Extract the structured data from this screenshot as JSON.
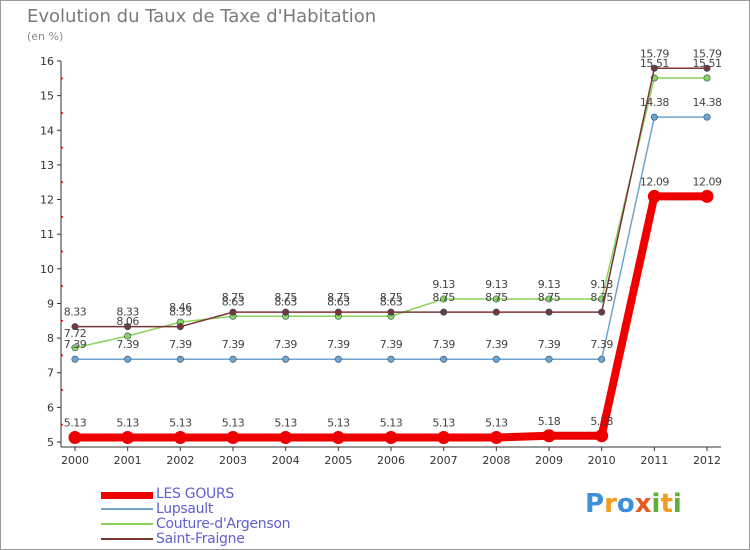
{
  "chart_data": {
    "type": "line",
    "title": "Evolution du Taux de Taxe d'Habitation",
    "subtitle": "(en %)",
    "categories": [
      "2000",
      "2001",
      "2002",
      "2003",
      "2004",
      "2005",
      "2006",
      "2007",
      "2008",
      "2009",
      "2010",
      "2011",
      "2012"
    ],
    "ylim": [
      5,
      16
    ],
    "yticks": [
      5,
      6,
      7,
      8,
      9,
      10,
      11,
      12,
      13,
      14,
      15,
      16
    ],
    "grid": false,
    "legend_position": "bottom-left",
    "series": [
      {
        "name": "LES GOURS",
        "color": "#ee0000",
        "values": [
          5.13,
          5.13,
          5.13,
          5.13,
          5.13,
          5.13,
          5.13,
          5.13,
          5.13,
          5.18,
          5.18,
          12.09,
          12.09
        ],
        "labels": [
          "5.13",
          "5.13",
          "5.13",
          "5.13",
          "5.13",
          "5.13",
          "5.13",
          "5.13",
          "5.13",
          "5.18",
          "5.18",
          "12.09",
          "12.09"
        ]
      },
      {
        "name": "Lupsault",
        "color": "#6fa4cf",
        "values": [
          7.39,
          7.39,
          7.39,
          7.39,
          7.39,
          7.39,
          7.39,
          7.39,
          7.39,
          7.39,
          7.39,
          14.38,
          14.38
        ],
        "labels": [
          "7.39",
          "7.39",
          "7.39",
          "7.39",
          "7.39",
          "7.39",
          "7.39",
          "7.39",
          "7.39",
          "7.39",
          "7.39",
          "14.38",
          "14.38"
        ]
      },
      {
        "name": "Couture-d'Argenson",
        "color": "#8ad45a",
        "values": [
          7.72,
          8.06,
          8.46,
          8.63,
          8.63,
          8.63,
          8.63,
          9.13,
          9.13,
          9.13,
          9.13,
          15.51,
          15.51
        ],
        "labels": [
          "7.72",
          "8.06",
          "8.46",
          "8.63",
          "8.63",
          "8.63",
          "8.63",
          "9.13",
          "9.13",
          "9.13",
          "9.13",
          "15.51",
          "15.51"
        ]
      },
      {
        "name": "Saint-Fraigne",
        "color": "#7a3535",
        "values": [
          8.33,
          8.33,
          8.33,
          8.75,
          8.75,
          8.75,
          8.75,
          8.75,
          8.75,
          8.75,
          8.75,
          15.79,
          15.79
        ],
        "labels": [
          "8.33",
          "8.33",
          "8.33",
          "8.75",
          "8.75",
          "8.75",
          "8.75",
          "8.75",
          "8.75",
          "8.75",
          "8.75",
          "15.79",
          "15.79"
        ]
      }
    ]
  },
  "brand": {
    "text": "Proxiti",
    "parts": [
      "P",
      "r",
      "o",
      "x",
      "i",
      "t",
      "i"
    ]
  }
}
